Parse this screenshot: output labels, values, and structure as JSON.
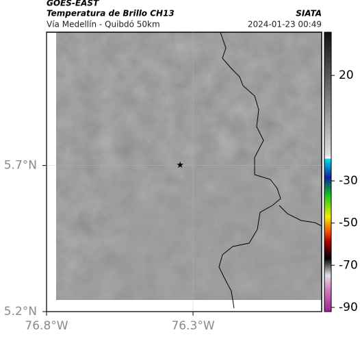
{
  "header": {
    "source": "GOES-EAST",
    "title": "Temperatura de Brillo CH13",
    "region": "Vía Medellín - Quibdó 50km",
    "agency": "SIATA",
    "timestamp": "2024-01-23 00:49"
  },
  "map": {
    "lonlim": [
      -76.8,
      -75.861
    ],
    "latlim": [
      5.2,
      6.156
    ],
    "lat_ticks": [
      {
        "value": 5.7,
        "label": "5.7°N"
      },
      {
        "value": 5.2,
        "label": "5.2°N"
      }
    ],
    "lon_ticks": [
      {
        "value": -76.8,
        "label": "76.8°W"
      },
      {
        "value": -76.3,
        "label": "76.3°W"
      }
    ],
    "marker": {
      "lon": -76.344,
      "lat": 5.7
    }
  },
  "colorbar": {
    "clim": [
      -92,
      40.5
    ],
    "ticks": [
      20,
      -30,
      -50,
      -70,
      -90
    ]
  }
}
